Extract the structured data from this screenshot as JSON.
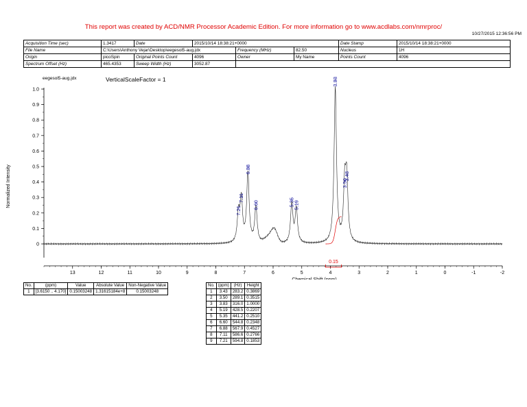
{
  "banner": "This report was created by ACD/NMR Processor Academic Edition. For more information go to www.acdlabs.com/nmrproc/",
  "timestamp": "10/27/2015 12:36:56 PM",
  "header": [
    [
      {
        "k": "Acquisition Time (sec)",
        "v": "1.3417"
      },
      {
        "k": "Date",
        "v": "2015/10/14 18:38:21+0000"
      },
      {
        "k": "Date Stamp",
        "v": "2015/10/14 18:38:21+0000"
      }
    ],
    [
      {
        "k": "File Name",
        "v": "C:\\Users\\Anthony Vejar\\Desktop\\eegesol5-aug.jdx"
      },
      {
        "k": "Frequency (MHz)",
        "v": "82.50"
      },
      {
        "k": "Nucleus",
        "v": "1H"
      }
    ],
    [
      {
        "k": "Origin",
        "v": "picoSpin"
      },
      {
        "k": "Original Points Count",
        "v": "4096"
      },
      {
        "k": "Owner",
        "v": "My Name"
      },
      {
        "k": "Points Count",
        "v": "4096"
      }
    ],
    [
      {
        "k": "Spectrum Offset (Hz)",
        "v": "465.4353"
      },
      {
        "k": "Sweep Width (Hz)",
        "v": "3052.87"
      }
    ]
  ],
  "plot": {
    "filename": "eegesol5-aug.jdx",
    "scale_note": "VerticalScaleFactor = 1",
    "integral_label": "0.15"
  },
  "chart_data": {
    "type": "line",
    "xlabel": "Chemical Shift (ppm)",
    "ylabel": "Normalized Intensity",
    "xlim": [
      14,
      -2
    ],
    "ylim": [
      -0.05,
      1.05
    ],
    "x_ticks": [
      13,
      12,
      11,
      10,
      9,
      8,
      7,
      6,
      5,
      4,
      3,
      2,
      1,
      0,
      -1,
      -2
    ],
    "y_ticks": [
      0,
      0.1,
      0.2,
      0.3,
      0.4,
      0.5,
      0.6,
      0.7,
      0.8,
      0.9,
      1.0
    ],
    "peaks": [
      {
        "ppm": 3.43,
        "height": 0.3869,
        "label": "3.43"
      },
      {
        "ppm": 3.5,
        "height": 0.3515,
        "label": "3.50"
      },
      {
        "ppm": 3.83,
        "height": 1.0,
        "label": "3.83"
      },
      {
        "ppm": 5.19,
        "height": 0.2207,
        "label": "5.19"
      },
      {
        "ppm": 5.35,
        "height": 0.251,
        "label": "5.35"
      },
      {
        "ppm": 6.6,
        "height": 0.2348,
        "label": "6.60"
      },
      {
        "ppm": 6.88,
        "height": 0.4527,
        "label": "6.88"
      },
      {
        "ppm": 7.11,
        "height": 0.2766,
        "label": "7.11"
      },
      {
        "ppm": 7.21,
        "height": 0.1853,
        "label": "7.21"
      }
    ],
    "integral_range": [
      4.17,
      3.615
    ]
  },
  "integral_table": {
    "headers": [
      "No.",
      "(ppm)",
      "Value",
      "Absolute Value",
      "Non-Negative Value"
    ],
    "rows": [
      [
        "1",
        "[3.6150 .. 4.170]",
        "0.15003248",
        "1.31615184e+8",
        "0.15003248"
      ]
    ]
  },
  "peak_table": {
    "headers": [
      "No.",
      "(ppm)",
      "(Hz)",
      "Height"
    ],
    "rows": [
      [
        "1",
        "3.43",
        "283.2",
        "0.3869"
      ],
      [
        "2",
        "3.50",
        "289.1",
        "0.3515"
      ],
      [
        "3",
        "3.83",
        "316.0",
        "1.0000"
      ],
      [
        "4",
        "5.19",
        "428.5",
        "0.2207"
      ],
      [
        "5",
        "5.35",
        "441.2",
        "0.2510"
      ],
      [
        "6",
        "6.60",
        "544.8",
        "0.2348"
      ],
      [
        "7",
        "6.88",
        "567.9",
        "0.4527"
      ],
      [
        "8",
        "7.11",
        "586.6",
        "0.2766"
      ],
      [
        "9",
        "7.21",
        "594.8",
        "0.1853"
      ]
    ]
  }
}
